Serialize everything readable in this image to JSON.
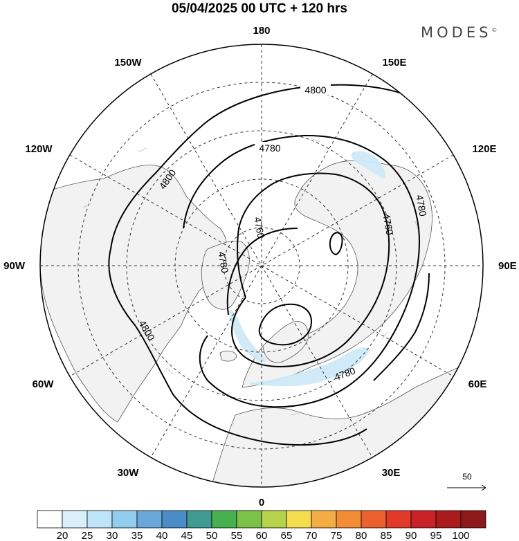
{
  "header": {
    "title": "05/04/2025  00 UTC  + 120 hrs",
    "brand": "MODES",
    "brand_mark": "©"
  },
  "map": {
    "projection": "north-polar-stereographic",
    "longitude_labels": {
      "top": "180",
      "top_right": "150E",
      "right_upper": "120E",
      "right": "90E",
      "right_lower": "60E",
      "bottom_right": "30E",
      "bottom": "0",
      "bottom_left": "30W",
      "left_lower": "60W",
      "left": "90W",
      "left_upper": "120W",
      "top_left": "150W"
    },
    "contours": [
      {
        "value": 4800,
        "label": "4800"
      },
      {
        "value": 4780,
        "label": "4780"
      },
      {
        "value": 4760,
        "label": "4760"
      },
      {
        "value": 4780,
        "label": "4780"
      },
      {
        "value": 4760,
        "label": "4760"
      },
      {
        "value": 4780,
        "label": "4780"
      },
      {
        "value": 4780,
        "label": "4780"
      },
      {
        "value": 4800,
        "label": "4800"
      },
      {
        "value": 4800,
        "label": "4800"
      }
    ],
    "reference_vector": "50",
    "colors": {
      "land": "#f2f2f2",
      "ocean": "#ffffff",
      "wind_20_25": "#d9f0fb",
      "wind_25_30": "#bde4f7"
    }
  },
  "colorbar": {
    "ticks": [
      "20",
      "25",
      "30",
      "35",
      "40",
      "45",
      "50",
      "55",
      "60",
      "65",
      "70",
      "75",
      "80",
      "85",
      "90",
      "95",
      "100"
    ],
    "colors": [
      "#ffffff",
      "#d9f0fb",
      "#bde4f7",
      "#93cdee",
      "#69a8d9",
      "#4a8dc6",
      "#3f9b91",
      "#47b04f",
      "#7cc24a",
      "#b5d34a",
      "#f4dd4f",
      "#f4ad45",
      "#f28c35",
      "#ec6030",
      "#e13a2b",
      "#c92226",
      "#a91b1d",
      "#8c1a1a"
    ]
  }
}
